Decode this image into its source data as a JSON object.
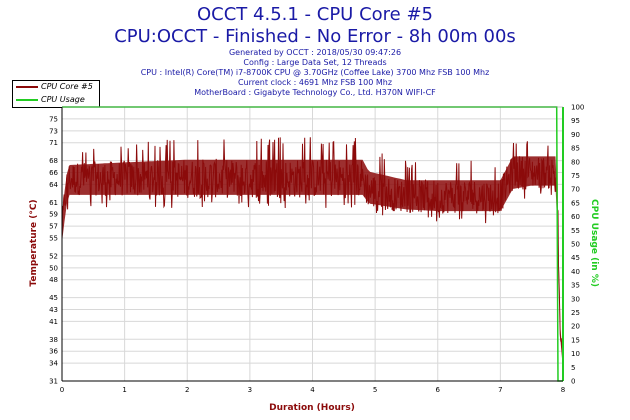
{
  "header": {
    "title": "OCCT 4.5.1 - CPU Core #5",
    "subtitle": "CPU:OCCT - Finished - No Error - 8h 00m 00s",
    "info_lines": [
      "Generated by OCCT : 2018/05/30 09:47:26",
      "Config : Large Data Set, 12 Threads",
      "CPU : Intel(R) Core(TM) i7-8700K CPU @ 3.70GHz (Coffee Lake) 3700 Mhz FSB 100 Mhz",
      "Current clock : 4691 Mhz FSB 100 Mhz",
      "MotherBoard : Gigabyte Technology Co., Ltd. H370N WIFI-CF"
    ]
  },
  "colors": {
    "temperature": "#8b0a0a",
    "usage": "#22cc22",
    "title": "#1a1aa6"
  },
  "chart_data": {
    "type": "line",
    "xlabel": "Duration (Hours)",
    "ylabel_left": "Temperature (°C)",
    "ylabel_right": "CPU Usage (in %)",
    "xlim": [
      0,
      8
    ],
    "ylim_left": [
      31,
      77
    ],
    "ylim_right": [
      0,
      100
    ],
    "x_ticks": [
      "0",
      "1",
      "2",
      "3",
      "4",
      "5",
      "6",
      "7",
      "8"
    ],
    "y_ticks_left": [
      "31",
      "34",
      "36",
      "38",
      "41",
      "43",
      "45",
      "48",
      "50",
      "52",
      "55",
      "57",
      "59",
      "61",
      "64",
      "66",
      "68",
      "71",
      "73",
      "75"
    ],
    "y_ticks_right": [
      "0",
      "5",
      "10",
      "15",
      "20",
      "25",
      "30",
      "35",
      "40",
      "45",
      "50",
      "55",
      "60",
      "65",
      "70",
      "75",
      "80",
      "85",
      "90",
      "95",
      "100"
    ],
    "legend": [
      "CPU Core #5",
      "CPU Usage"
    ],
    "series": [
      {
        "name": "CPU Core #5",
        "axis": "left",
        "x": [
          0,
          0.05,
          0.1,
          1,
          2,
          3,
          4,
          4.8,
          4.9,
          5.5,
          6,
          6.5,
          7.0,
          7.2,
          7.5,
          7.9,
          7.95,
          8
        ],
        "min": [
          52,
          56,
          60,
          60,
          60,
          60,
          60,
          60,
          59,
          58,
          57.5,
          57.5,
          57.5,
          61,
          62,
          62,
          38,
          32
        ],
        "mean": [
          57,
          62,
          65,
          65,
          65,
          65,
          65,
          65,
          63,
          62,
          62,
          62,
          62,
          66,
          66,
          66,
          40,
          34
        ],
        "max": [
          61,
          66,
          70,
          71,
          72,
          72,
          72,
          72,
          70,
          68,
          68,
          68,
          68,
          72,
          72,
          72,
          42,
          36
        ]
      },
      {
        "name": "CPU Usage",
        "axis": "right",
        "x": [
          0,
          7.9,
          7.92,
          8
        ],
        "y": [
          100,
          100,
          0,
          0
        ]
      }
    ]
  }
}
